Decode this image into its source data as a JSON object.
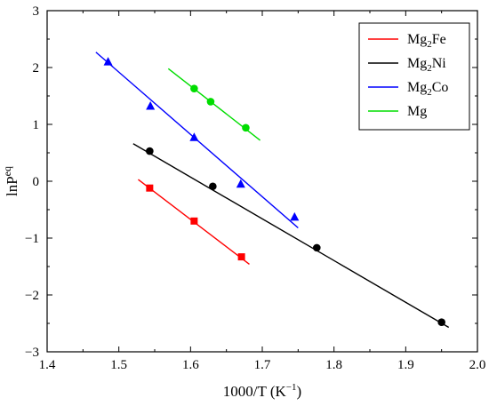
{
  "chart_data": {
    "type": "scatter",
    "xlabel": "1000/T (K",
    "xlabel_sup": "−1",
    "xlabel_close": ")",
    "ylabel": "lnP",
    "ylabel_sup": "eq",
    "xlim": [
      1.4,
      2.0
    ],
    "ylim": [
      -3,
      3
    ],
    "x_ticks": [
      1.4,
      1.5,
      1.6,
      1.7,
      1.8,
      1.9,
      2.0
    ],
    "x_tick_labels": [
      "1.4",
      "1.5",
      "1.6",
      "1.7",
      "1.8",
      "1.9",
      "2.0"
    ],
    "y_ticks": [
      -3,
      -2,
      -1,
      0,
      1,
      2,
      3
    ],
    "y_tick_labels": [
      "−3",
      "−2",
      "−1",
      "0",
      "1",
      "2",
      "3"
    ],
    "grid": false,
    "legend_position": "top-right",
    "series": [
      {
        "name": "Mg2Fe",
        "label_parts": [
          "Mg",
          "2",
          "Fe"
        ],
        "color": "#ff0000",
        "marker": "square",
        "points": [
          [
            1.543,
            -0.12
          ],
          [
            1.605,
            -0.7
          ],
          [
            1.671,
            -1.33
          ]
        ],
        "fit": [
          [
            1.527,
            0.03
          ],
          [
            1.682,
            -1.46
          ]
        ]
      },
      {
        "name": "Mg2Ni",
        "label_parts": [
          "Mg",
          "2",
          "Ni"
        ],
        "color": "#000000",
        "marker": "circle",
        "points": [
          [
            1.543,
            0.53
          ],
          [
            1.631,
            -0.09
          ],
          [
            1.776,
            -1.17
          ],
          [
            1.95,
            -2.48
          ]
        ],
        "fit": [
          [
            1.52,
            0.66
          ],
          [
            1.96,
            -2.57
          ]
        ]
      },
      {
        "name": "Mg2Co",
        "label_parts": [
          "Mg",
          "2",
          "Co"
        ],
        "color": "#0000ff",
        "marker": "triangle",
        "points": [
          [
            1.485,
            2.1
          ],
          [
            1.544,
            1.32
          ],
          [
            1.605,
            0.77
          ],
          [
            1.67,
            -0.05
          ],
          [
            1.745,
            -0.63
          ]
        ],
        "fit": [
          [
            1.468,
            2.27
          ],
          [
            1.75,
            -0.82
          ]
        ]
      },
      {
        "name": "Mg",
        "label_parts": [
          "Mg",
          "",
          ""
        ],
        "color": "#00dd00",
        "marker": "circle",
        "points": [
          [
            1.605,
            1.63
          ],
          [
            1.628,
            1.4
          ],
          [
            1.677,
            0.94
          ]
        ],
        "fit": [
          [
            1.569,
            1.98
          ],
          [
            1.697,
            0.72
          ]
        ]
      }
    ]
  }
}
